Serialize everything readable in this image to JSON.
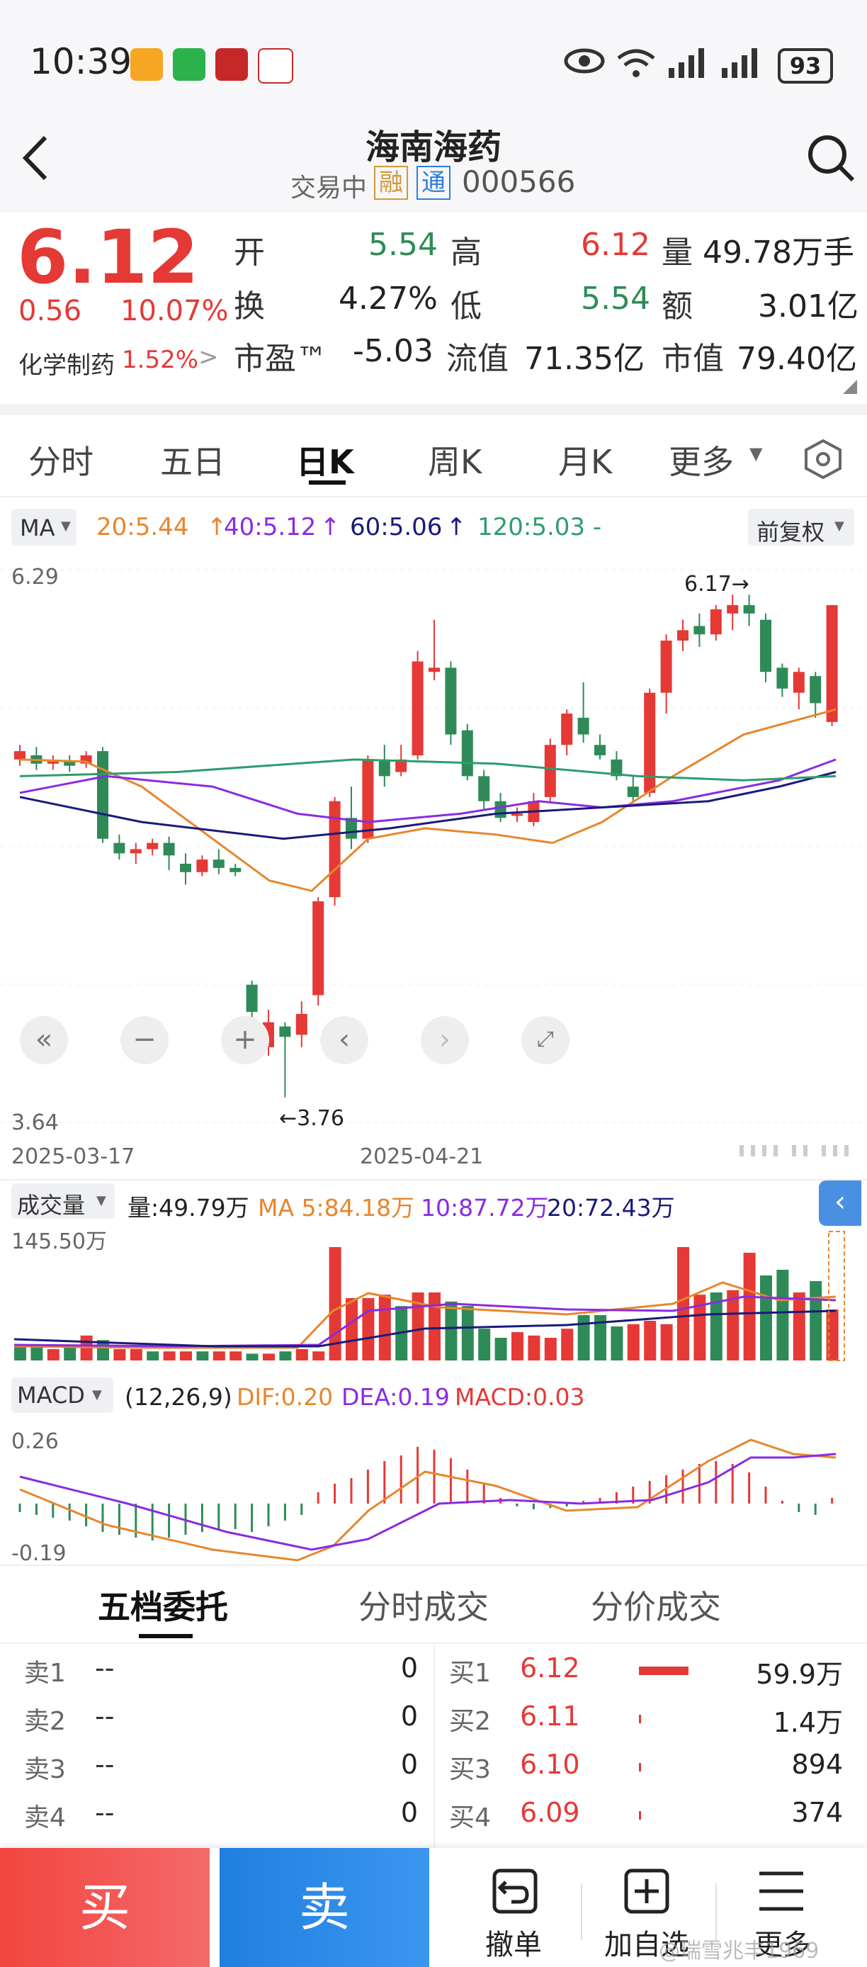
{
  "status_bar": {
    "time": "10:39",
    "battery": "93"
  },
  "header": {
    "title": "海南海药",
    "trading_status": "交易中",
    "badge_margin": "融",
    "badge_connect": "通",
    "code": "000566"
  },
  "quote": {
    "price": "6.12",
    "change": "0.56",
    "change_pct": "10.07%",
    "sector_name": "化学制药",
    "sector_pct": "1.52%",
    "open_label": "开",
    "open": "5.54",
    "high_label": "高",
    "high": "6.12",
    "volume_label": "量",
    "volume": "49.78万手",
    "turnover_label": "换",
    "turnover": "4.27%",
    "low_label": "低",
    "low": "5.54",
    "amount_label": "额",
    "amount": "3.01亿",
    "pe_label": "市盈™",
    "pe": "-5.03",
    "float_cap_label": "流值",
    "float_cap": "71.35亿",
    "market_cap_label": "市值",
    "market_cap": "79.40亿"
  },
  "tabs": [
    "分时",
    "五日",
    "日K",
    "周K",
    "月K",
    "更多"
  ],
  "ma_bar": {
    "selector": "MA",
    "ma20": "20:5.44",
    "ma40": "40:5.12",
    "ma60": "60:5.06",
    "ma120": "120:5.03 -",
    "adjust": "前复权",
    "colors": {
      "ma20": "#e8862c",
      "ma40": "#8a2be2",
      "ma60": "#1a1a7a",
      "ma120": "#2e9c6e"
    }
  },
  "kline": {
    "y_top": "6.29",
    "y_bottom": "3.64",
    "max_label": "6.17→",
    "min_label": "←3.76",
    "date_start": "2025-03-17",
    "date_mid": "2025-04-21"
  },
  "volume_panel": {
    "selector": "成交量",
    "volume": "量:49.79万",
    "ma5": "MA 5:84.18万",
    "ma10": "10:87.72万",
    "ma20": "20:72.43万",
    "y_top": "145.50万"
  },
  "macd_panel": {
    "selector": "MACD",
    "params": "(12,26,9)",
    "dif": "DIF:0.20",
    "dea": "DEA:0.19",
    "macd": "MACD:0.03",
    "y_top": "0.26",
    "y_bottom": "-0.19"
  },
  "order_tabs": [
    "五档委托",
    "分时成交",
    "分价成交"
  ],
  "sell_orders": [
    {
      "label": "卖1",
      "price": "--",
      "vol": "0"
    },
    {
      "label": "卖2",
      "price": "--",
      "vol": "0"
    },
    {
      "label": "卖3",
      "price": "--",
      "vol": "0"
    },
    {
      "label": "卖4",
      "price": "--",
      "vol": "0"
    }
  ],
  "buy_orders": [
    {
      "label": "买1",
      "price": "6.12",
      "vol": "59.9万",
      "ratio": 1.0
    },
    {
      "label": "买2",
      "price": "6.11",
      "vol": "1.4万",
      "ratio": 0.03
    },
    {
      "label": "买3",
      "price": "6.10",
      "vol": "894",
      "ratio": 0.01
    },
    {
      "label": "买4",
      "price": "6.09",
      "vol": "374",
      "ratio": 0.01
    }
  ],
  "bottom_bar": {
    "buy": "买",
    "sell": "卖",
    "cancel": "撤单",
    "add_watch": "加自选",
    "more": "更多",
    "watermark": "@瑞雪兆丰1969"
  }
}
